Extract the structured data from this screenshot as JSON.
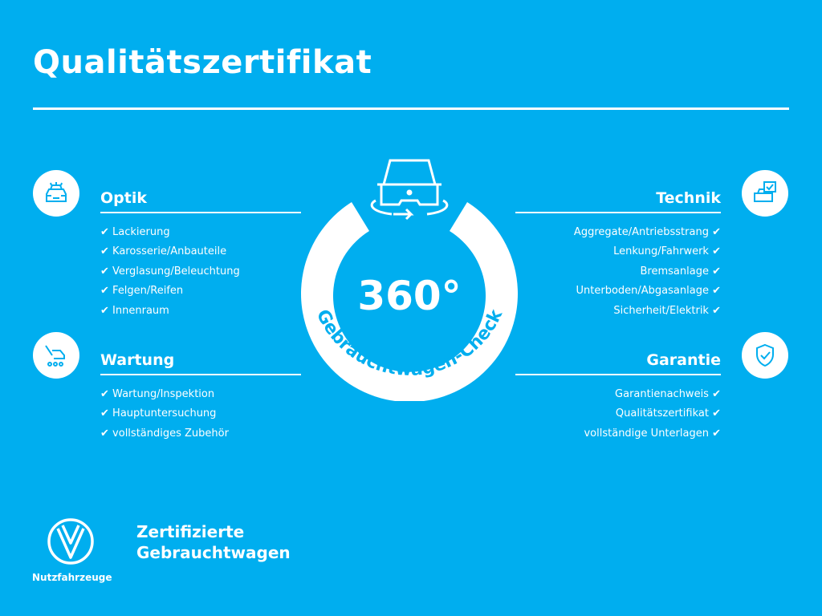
{
  "title": "Qualitätszertifikat",
  "check_mark": "✔",
  "badge": {
    "number": "360°",
    "caption": "Gebrauchtwagen-Check"
  },
  "sections": {
    "optik": {
      "title": "Optik",
      "icon": "car-front-lights-icon",
      "items": [
        "Lackierung",
        "Karosserie/Anbauteile",
        "Verglasung/Beleuchtung",
        "Felgen/Reifen",
        "Innenraum"
      ]
    },
    "wartung": {
      "title": "Wartung",
      "icon": "car-service-icon",
      "items": [
        "Wartung/Inspektion",
        "Hauptuntersuchung",
        "vollständiges Zubehör"
      ]
    },
    "technik": {
      "title": "Technik",
      "icon": "car-checklist-icon",
      "items": [
        "Aggregate/Antriebsstrang",
        "Lenkung/Fahrwerk",
        "Bremsanlage",
        "Unterboden/Abgasanlage",
        "Sicherheit/Elektrik"
      ]
    },
    "garantie": {
      "title": "Garantie",
      "icon": "shield-check-icon",
      "items": [
        "Garantienachweis",
        "Qualitätszertifikat",
        "vollständige Unterlagen"
      ]
    }
  },
  "brand": {
    "line1": "Zertifizierte",
    "line2": "Gebrauchtwagen",
    "logo_text": "Nutzfahrzeuge"
  },
  "colors": {
    "background": "#00aeef",
    "foreground": "#ffffff"
  }
}
